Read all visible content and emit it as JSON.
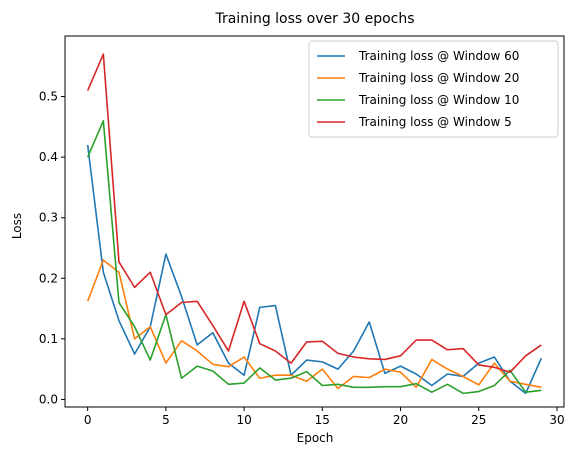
{
  "chart_data": {
    "type": "line",
    "title": "Training loss over 30 epochs",
    "xlabel": "Epoch",
    "ylabel": "Loss",
    "xlim": [
      -1.45,
      30.45
    ],
    "ylim": [
      -0.0125,
      0.6
    ],
    "xticks": [
      0,
      5,
      10,
      15,
      20,
      25,
      30
    ],
    "yticks": [
      0.0,
      0.1,
      0.2,
      0.3,
      0.4,
      0.5
    ],
    "ytick_labels": [
      "0.0",
      "0.1",
      "0.2",
      "0.3",
      "0.4",
      "0.5"
    ],
    "grid": false,
    "legend_position": "top-right",
    "x": [
      0,
      1,
      2,
      3,
      4,
      5,
      6,
      7,
      8,
      9,
      10,
      11,
      12,
      13,
      14,
      15,
      16,
      17,
      18,
      19,
      20,
      21,
      22,
      23,
      24,
      25,
      26,
      27,
      28,
      29
    ],
    "series": [
      {
        "name": "Training loss @ Window 60",
        "color": "#1f77b4",
        "values": [
          0.42,
          0.21,
          0.13,
          0.075,
          0.12,
          0.24,
          0.17,
          0.09,
          0.11,
          0.06,
          0.04,
          0.152,
          0.155,
          0.04,
          0.065,
          0.062,
          0.05,
          0.08,
          0.128,
          0.043,
          0.055,
          0.042,
          0.023,
          0.042,
          0.038,
          0.06,
          0.07,
          0.03,
          0.01,
          0.068
        ]
      },
      {
        "name": "Training loss @ Window 20",
        "color": "#ff7f0e",
        "values": [
          0.162,
          0.23,
          0.21,
          0.1,
          0.12,
          0.06,
          0.097,
          0.08,
          0.058,
          0.054,
          0.07,
          0.035,
          0.04,
          0.04,
          0.03,
          0.05,
          0.018,
          0.038,
          0.036,
          0.05,
          0.045,
          0.02,
          0.066,
          0.05,
          0.038,
          0.024,
          0.06,
          0.03,
          0.025,
          0.02
        ]
      },
      {
        "name": "Training loss @ Window 10",
        "color": "#2ca02c",
        "values": [
          0.4,
          0.46,
          0.16,
          0.12,
          0.065,
          0.14,
          0.035,
          0.055,
          0.047,
          0.025,
          0.027,
          0.052,
          0.032,
          0.035,
          0.046,
          0.023,
          0.025,
          0.02,
          0.02,
          0.021,
          0.021,
          0.026,
          0.012,
          0.025,
          0.01,
          0.013,
          0.023,
          0.048,
          0.012,
          0.015
        ]
      },
      {
        "name": "Training loss @ Window 5",
        "color": "#d62728",
        "values": [
          0.51,
          0.57,
          0.227,
          0.185,
          0.21,
          0.14,
          0.16,
          0.162,
          0.122,
          0.08,
          0.162,
          0.092,
          0.08,
          0.06,
          0.095,
          0.096,
          0.076,
          0.07,
          0.067,
          0.066,
          0.072,
          0.098,
          0.098,
          0.082,
          0.084,
          0.057,
          0.053,
          0.045,
          0.072,
          0.09
        ]
      }
    ]
  }
}
